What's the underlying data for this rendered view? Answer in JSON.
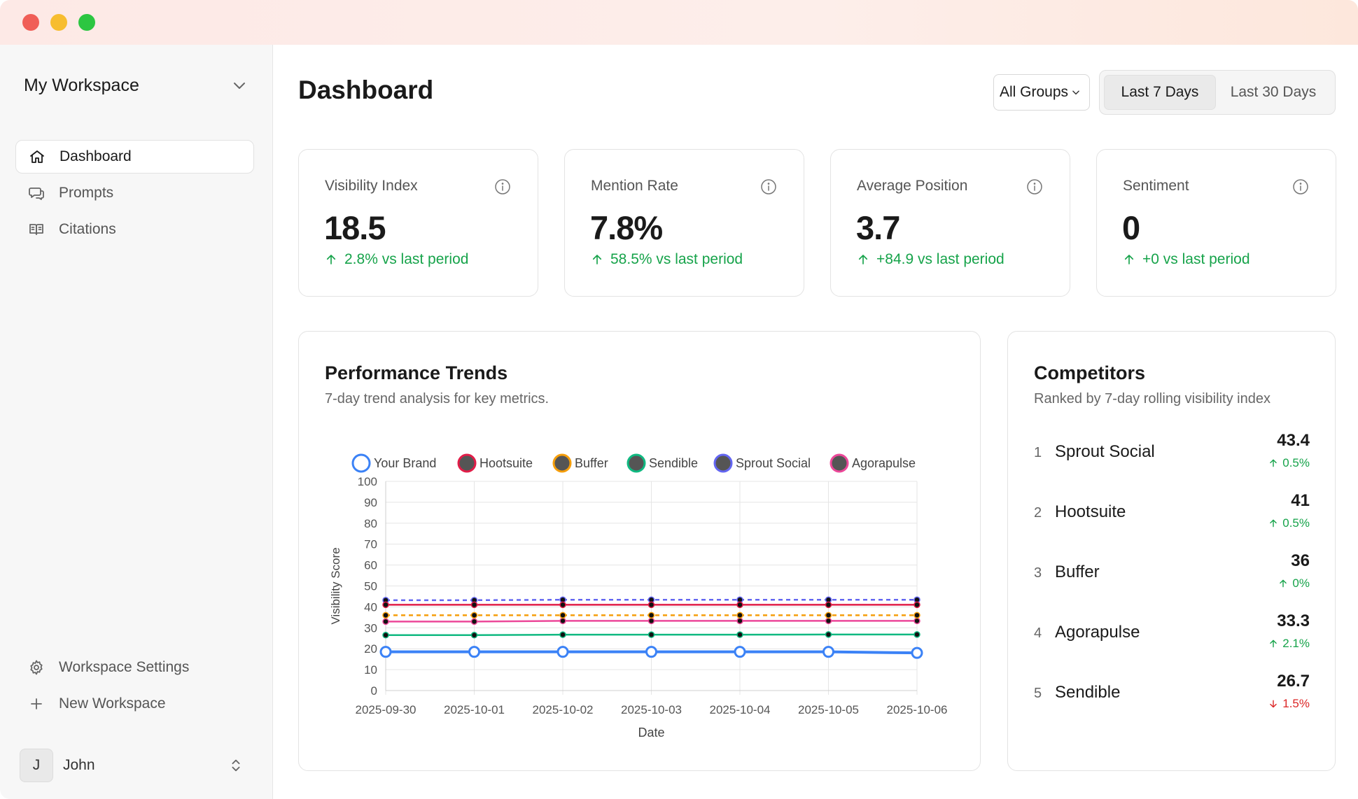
{
  "sidebar": {
    "workspace_name": "My Workspace",
    "nav": [
      {
        "label": "Dashboard",
        "icon": "home-icon",
        "active": true
      },
      {
        "label": "Prompts",
        "icon": "chat-icon",
        "active": false
      },
      {
        "label": "Citations",
        "icon": "book-icon",
        "active": false
      }
    ],
    "bottom_nav": [
      {
        "label": "Workspace Settings",
        "icon": "gear-icon"
      },
      {
        "label": "New Workspace",
        "icon": "plus-icon"
      }
    ],
    "user": {
      "initial": "J",
      "name": "John"
    }
  },
  "header": {
    "title": "Dashboard",
    "group_select": "All Groups",
    "range_options": [
      "Last 7 Days",
      "Last 30 Days"
    ],
    "range_selected": "Last 7 Days"
  },
  "stats": [
    {
      "label": "Visibility Index",
      "value": "18.5",
      "change": "2.8% vs last period"
    },
    {
      "label": "Mention Rate",
      "value": "7.8%",
      "change": "58.5% vs last period"
    },
    {
      "label": "Average Position",
      "value": "3.7",
      "change": "+84.9 vs last period"
    },
    {
      "label": "Sentiment",
      "value": "0",
      "change": "+0 vs last period"
    }
  ],
  "trends": {
    "title": "Performance Trends",
    "subtitle": "7-day trend analysis for key metrics."
  },
  "competitors": {
    "title": "Competitors",
    "subtitle": "Ranked by 7-day rolling visibility index",
    "items": [
      {
        "rank": "1",
        "name": "Sprout Social",
        "score": "43.4",
        "change": "0.5%",
        "direction": "up"
      },
      {
        "rank": "2",
        "name": "Hootsuite",
        "score": "41",
        "change": "0.5%",
        "direction": "up"
      },
      {
        "rank": "3",
        "name": "Buffer",
        "score": "36",
        "change": "0%",
        "direction": "up"
      },
      {
        "rank": "4",
        "name": "Agorapulse",
        "score": "33.3",
        "change": "2.1%",
        "direction": "up"
      },
      {
        "rank": "5",
        "name": "Sendible",
        "score": "26.7",
        "change": "1.5%",
        "direction": "down"
      }
    ]
  },
  "colors": {
    "positive": "#16a34a",
    "negative": "#dc2626"
  },
  "chart_data": {
    "type": "line",
    "title": "",
    "xlabel": "Date",
    "ylabel": "Visibility Score",
    "ylim": [
      0,
      100
    ],
    "yticks": [
      0,
      10,
      20,
      30,
      40,
      50,
      60,
      70,
      80,
      90,
      100
    ],
    "grid": true,
    "legend": "top",
    "categories": [
      "2025-09-30",
      "2025-10-01",
      "2025-10-02",
      "2025-10-03",
      "2025-10-04",
      "2025-10-05",
      "2025-10-06"
    ],
    "series": [
      {
        "name": "Your Brand",
        "color": "#3b82f6",
        "dashed": false,
        "values": [
          18.5,
          18.5,
          18.5,
          18.5,
          18.5,
          18.5,
          18.0
        ]
      },
      {
        "name": "Hootsuite",
        "color": "#e11d48",
        "dashed": false,
        "values": [
          41,
          41,
          41,
          41,
          41,
          41,
          41
        ]
      },
      {
        "name": "Buffer",
        "color": "#f59e0b",
        "dashed": true,
        "values": [
          36,
          36,
          36,
          36,
          36,
          36,
          36
        ]
      },
      {
        "name": "Sendible",
        "color": "#10b981",
        "dashed": false,
        "values": [
          26.5,
          26.5,
          26.7,
          26.7,
          26.7,
          26.8,
          26.8
        ]
      },
      {
        "name": "Sprout Social",
        "color": "#6366f1",
        "dashed": true,
        "values": [
          43.2,
          43.2,
          43.4,
          43.4,
          43.4,
          43.4,
          43.4
        ]
      },
      {
        "name": "Agorapulse",
        "color": "#ec4899",
        "dashed": false,
        "values": [
          33,
          33,
          33.3,
          33.3,
          33.3,
          33.3,
          33.3
        ]
      }
    ]
  }
}
